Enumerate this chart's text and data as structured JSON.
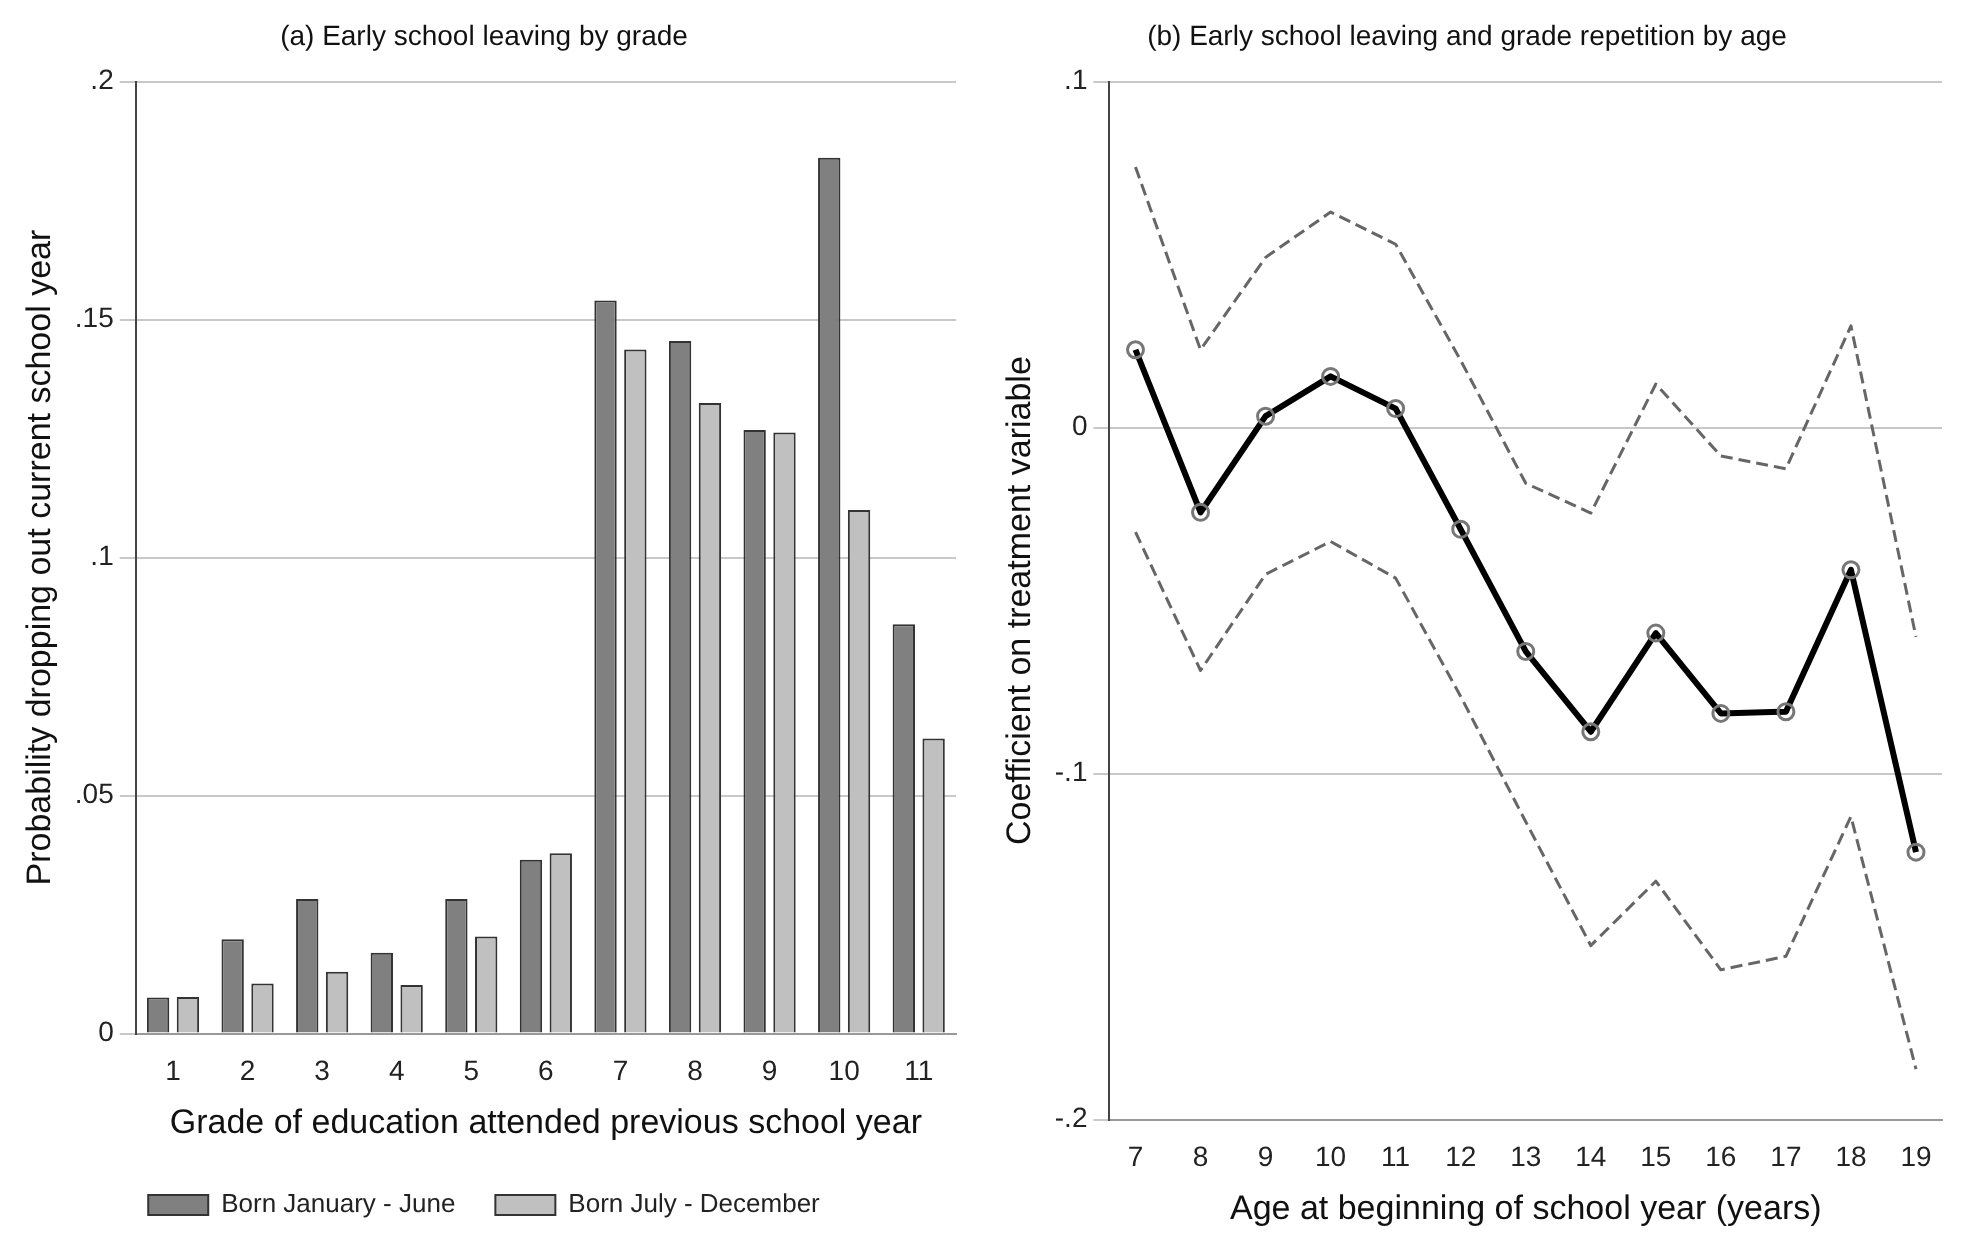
{
  "chart_data": [
    {
      "type": "bar",
      "title": "(a) Early school leaving by grade",
      "xlabel": "Grade of education attended previous school year",
      "ylabel": "Probability dropping out current school year",
      "categories": [
        "1",
        "2",
        "3",
        "4",
        "5",
        "6",
        "7",
        "8",
        "9",
        "10",
        "11"
      ],
      "series": [
        {
          "name": "Born January - June",
          "color": "#808080",
          "values": [
            0.0076,
            0.0198,
            0.0283,
            0.017,
            0.0283,
            0.0365,
            0.154,
            0.1455,
            0.1268,
            0.184,
            0.086
          ]
        },
        {
          "name": "Born July - December",
          "color": "#c0c0c0",
          "values": [
            0.0077,
            0.0105,
            0.013,
            0.0102,
            0.0204,
            0.0379,
            0.1437,
            0.1325,
            0.1263,
            0.11,
            0.062
          ]
        }
      ],
      "ylim": [
        0,
        0.2
      ],
      "yticks": [
        0,
        {
          "value": 0.05,
          "label": ".05"
        },
        {
          "value": 0.1,
          "label": ".1"
        },
        {
          "value": 0.15,
          "label": ".15"
        },
        {
          "value": 0.2,
          "label": ".2"
        }
      ],
      "grid": "y",
      "legend": "bottom"
    },
    {
      "type": "line",
      "title": "(b) Early school leaving and grade repetition by age",
      "xlabel": "Age at beginning of school year (years)",
      "ylabel": "Coefficient on treatment variable",
      "x": [
        7,
        8,
        9,
        10,
        11,
        12,
        13,
        14,
        15,
        16,
        17,
        18,
        19
      ],
      "series": [
        {
          "color": "#000000",
          "marker": "circle",
          "line_style": "solid",
          "values": [
            0.0225,
            -0.0245,
            0.0033,
            0.0148,
            0.0055,
            -0.0294,
            -0.0647,
            -0.0879,
            -0.0594,
            -0.0826,
            -0.0821,
            -0.0411,
            -0.1227
          ]
        },
        {
          "color": "#666666",
          "marker": "none",
          "line_style": "dashed",
          "values": [
            0.0753,
            0.0225,
            0.0492,
            0.0623,
            0.053,
            0.0194,
            -0.0161,
            -0.0247,
            0.0126,
            -0.0082,
            -0.0119,
            0.0294,
            -0.0605
          ]
        },
        {
          "color": "#666666",
          "marker": "none",
          "line_style": "dashed",
          "values": [
            -0.0302,
            -0.0702,
            -0.0424,
            -0.0329,
            -0.0435,
            -0.0777,
            -0.1139,
            -0.1497,
            -0.1311,
            -0.1567,
            -0.1528,
            -0.1124,
            -0.1854
          ]
        }
      ],
      "xlim": [
        6.6,
        19.4
      ],
      "xticks": [
        7,
        8,
        9,
        10,
        11,
        12,
        13,
        14,
        15,
        16,
        17,
        18,
        19
      ],
      "ylim": [
        -0.2,
        0.1
      ],
      "yticks": [
        {
          "value": -0.2,
          "label": "-.2"
        },
        {
          "value": -0.1,
          "label": "-.1"
        },
        0,
        {
          "value": 0.1,
          "label": ".1"
        }
      ],
      "grid": "y",
      "legend": false
    }
  ]
}
